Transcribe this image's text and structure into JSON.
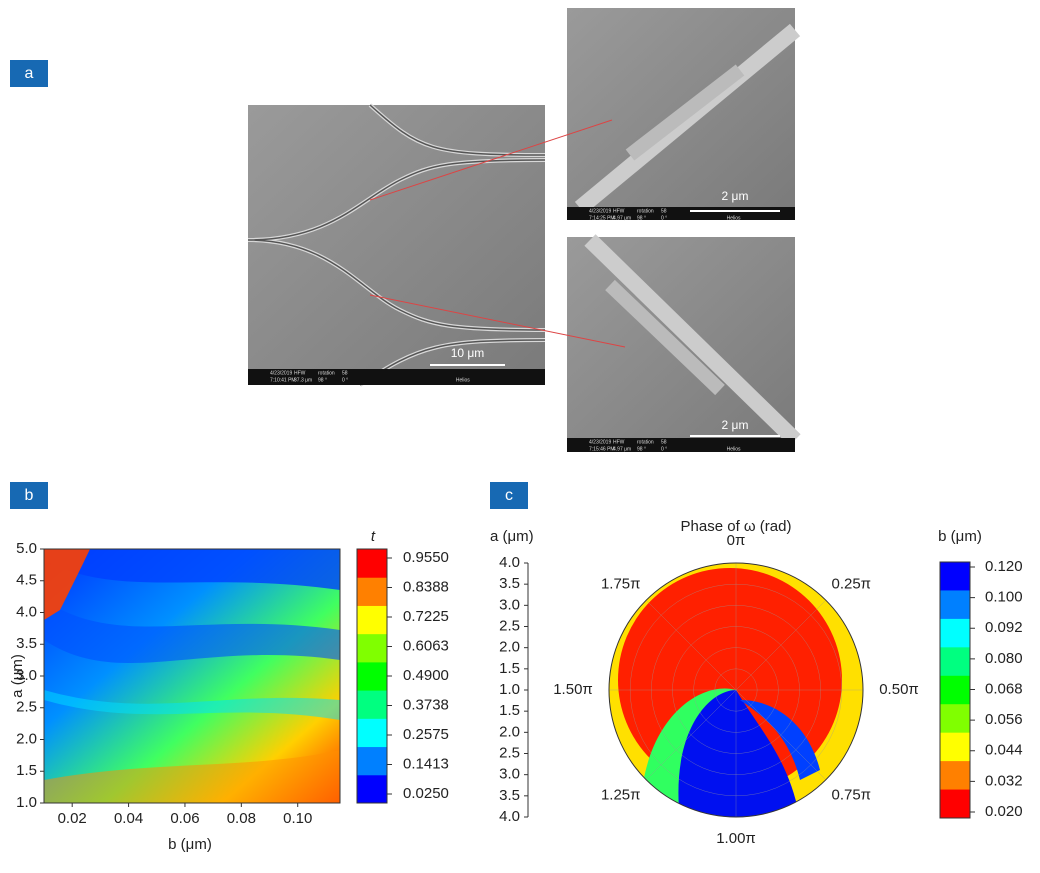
{
  "panel_labels": [
    "a",
    "b",
    "c"
  ],
  "images": [
    {
      "info": [
        [
          "4/23/2019",
          "HFW",
          "rotation",
          "58"
        ],
        [
          "7:10:41 PM",
          "37.3 μm",
          "98 °",
          "0 °"
        ]
      ],
      "brand": "Helios",
      "scale_bar": "10 μm"
    },
    {
      "info": [
        [
          "4/23/2019",
          "HFW",
          "rotation",
          "58"
        ],
        [
          "7:14:25 PM",
          "4.97 μm",
          "98 °",
          "0 °"
        ]
      ],
      "brand": "Helios",
      "scale_bar": "2 μm"
    },
    {
      "info": [
        [
          "4/23/2019",
          "HFW",
          "rotation",
          "58"
        ],
        [
          "7:15:46 PM",
          "4.97 μm",
          "98 °",
          "0 °"
        ]
      ],
      "brand": "Helios",
      "scale_bar": "2 μm"
    }
  ],
  "chart_data": [
    {
      "type": "heatmap",
      "x_label": "b (μm)",
      "y_label": "a (μm)",
      "xlim": [
        0.01,
        0.115
      ],
      "xticks": [
        0.02,
        0.04,
        0.06,
        0.08,
        {
          "value": 0.1,
          "label": "0.10"
        }
      ],
      "ylim": [
        1,
        5
      ],
      "yticks": [
        {
          "value": 1,
          "label": "1.0"
        },
        1.5,
        {
          "value": 2,
          "label": "2.0"
        },
        2.5,
        {
          "value": 3,
          "label": "3.0"
        },
        3.5,
        {
          "value": 4,
          "label": "4.0"
        },
        4.5,
        {
          "value": 5,
          "label": "5.0"
        }
      ],
      "colorbar": {
        "title": "t",
        "lim": [
          0.025,
          0.955
        ],
        "ticks": [
          {
            "value": 0.025,
            "label": "0.0250"
          },
          {
            "value": 0.1413,
            "label": "0.1413"
          },
          {
            "value": 0.2575,
            "label": "0.2575"
          },
          {
            "value": 0.3738,
            "label": "0.3738"
          },
          {
            "value": 0.49,
            "label": "0.4900"
          },
          {
            "value": 0.6063,
            "label": "0.6063"
          },
          {
            "value": 0.7225,
            "label": "0.7225"
          },
          {
            "value": 0.8388,
            "label": "0.8388"
          },
          {
            "value": 0.955,
            "label": "0.9550"
          }
        ],
        "colors": [
          "#0000ff",
          "#0080ff",
          "#00ffff",
          "#00ff80",
          "#00ff00",
          "#80ff00",
          "#ffff00",
          "#ff8000",
          "#ff0000"
        ]
      }
    },
    {
      "type": "polar",
      "title": "Phase of ω (rad)",
      "r_label": "a (μm)",
      "rlim": [
        1,
        4
      ],
      "rticks": [
        {
          "value": 4,
          "label": "4.0"
        },
        3.5,
        {
          "value": 3,
          "label": "3.0"
        },
        2.5,
        {
          "value": 2,
          "label": "2.0"
        },
        1.5,
        {
          "value": 1,
          "label": "1.0"
        },
        1.5,
        {
          "value": 2,
          "label": "2.0"
        },
        2.5,
        {
          "value": 3,
          "label": "3.0"
        },
        3.5,
        {
          "value": 4,
          "label": "4.0"
        }
      ],
      "theta_labels": [
        "0π",
        "0.25π",
        "0.50π",
        "0.75π",
        "1.00π",
        "1.25π",
        "1.50π",
        "1.75π"
      ],
      "colorbar": {
        "title": "b (μm)",
        "ticks": [
          {
            "value": 0.12,
            "label": "0.120"
          },
          {
            "value": 0.1,
            "label": "0.100"
          },
          {
            "value": 0.092,
            "label": "0.092"
          },
          {
            "value": 0.08,
            "label": "0.080"
          },
          {
            "value": 0.068,
            "label": "0.068"
          },
          {
            "value": 0.056,
            "label": "0.056"
          },
          {
            "value": 0.044,
            "label": "0.044"
          },
          {
            "value": 0.032,
            "label": "0.032"
          },
          {
            "value": 0.02,
            "label": "0.020"
          }
        ],
        "colors": [
          "#0000ff",
          "#0080ff",
          "#00ffff",
          "#00ff80",
          "#00ff00",
          "#80ff00",
          "#ffff00",
          "#ff8000",
          "#ff0000"
        ]
      }
    }
  ]
}
